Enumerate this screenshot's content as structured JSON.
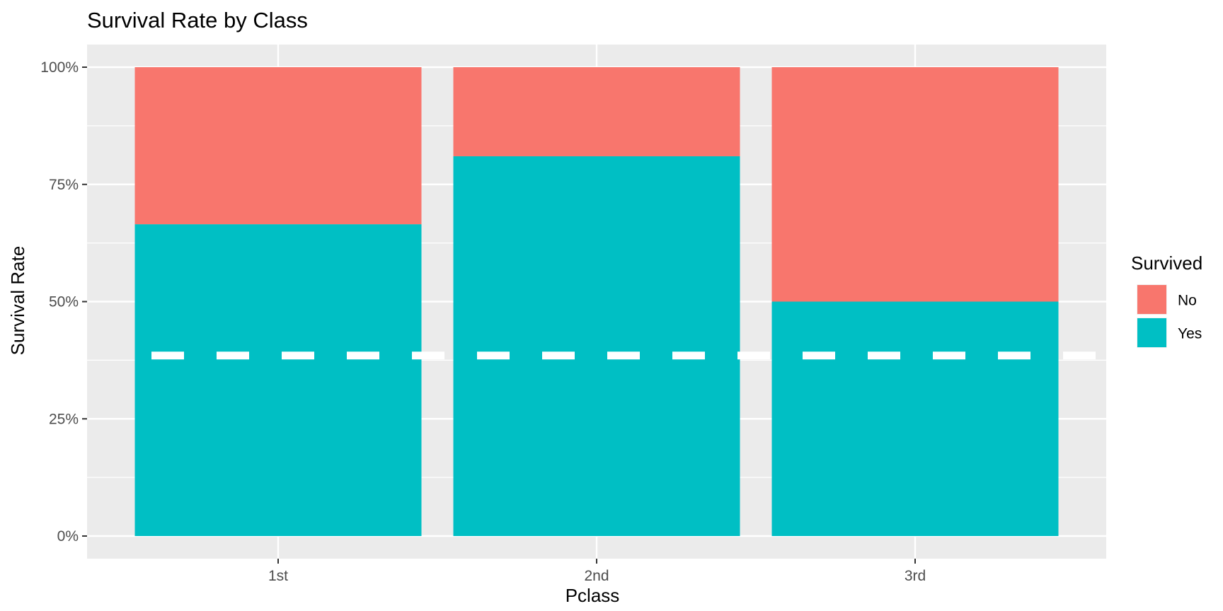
{
  "chart_data": {
    "type": "bar",
    "stacked": true,
    "title": "Survival Rate by Class",
    "xlabel": "Pclass",
    "ylabel": "Survival Rate",
    "categories": [
      "1st",
      "2nd",
      "3rd"
    ],
    "series": [
      {
        "name": "No",
        "values": [
          0.335,
          0.19,
          0.5
        ],
        "color": "#F8766D"
      },
      {
        "name": "Yes",
        "values": [
          0.665,
          0.81,
          0.5
        ],
        "color": "#00BFC4"
      }
    ],
    "ylim": [
      0,
      1
    ],
    "yticks": [
      0,
      0.25,
      0.5,
      0.75,
      1.0
    ],
    "ytick_labels": [
      "0%",
      "25%",
      "50%",
      "75%",
      "100%"
    ],
    "reference_line": {
      "value": 0.385,
      "style": "dashed",
      "color": "#ffffff"
    },
    "legend": {
      "title": "Survived",
      "position": "right"
    },
    "grid": true,
    "panel_background": "#EBEBEB"
  }
}
